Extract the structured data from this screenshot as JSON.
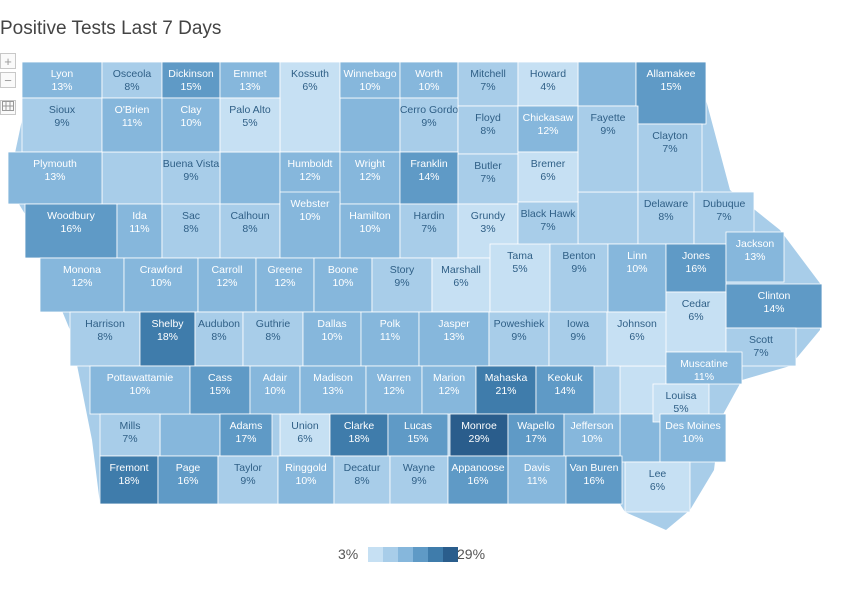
{
  "title": "Positive Tests Last 7 Days",
  "controls": {
    "zoom_in": "+",
    "zoom_out": "−",
    "reset_icon": "table-icon"
  },
  "legend": {
    "min_label": "3%",
    "max_label": "29%",
    "colors": [
      "#c6e0f3",
      "#a8cde9",
      "#86b7dc",
      "#5f9ac6",
      "#3f7cab",
      "#2a5d8c"
    ]
  },
  "counties": [
    {
      "name": "Lyon",
      "value": "13%"
    },
    {
      "name": "Osceola",
      "value": "8%"
    },
    {
      "name": "Dickinson",
      "value": "15%"
    },
    {
      "name": "Emmet",
      "value": "13%"
    },
    {
      "name": "Kossuth",
      "value": "6%"
    },
    {
      "name": "Winnebago",
      "value": "10%"
    },
    {
      "name": "Worth",
      "value": "10%"
    },
    {
      "name": "Mitchell",
      "value": "7%"
    },
    {
      "name": "Howard",
      "value": "4%"
    },
    {
      "name": "Allamakee",
      "value": "15%"
    },
    {
      "name": "Sioux",
      "value": "9%"
    },
    {
      "name": "O'Brien",
      "value": "11%"
    },
    {
      "name": "Clay",
      "value": "10%"
    },
    {
      "name": "Palo Alto",
      "value": "5%"
    },
    {
      "name": "Cerro Gordo",
      "value": "9%"
    },
    {
      "name": "Floyd",
      "value": "8%"
    },
    {
      "name": "Chickasaw",
      "value": "12%"
    },
    {
      "name": "Fayette",
      "value": "9%"
    },
    {
      "name": "Clayton",
      "value": "7%"
    },
    {
      "name": "Plymouth",
      "value": "13%"
    },
    {
      "name": "Buena Vista",
      "value": "9%"
    },
    {
      "name": "Humboldt",
      "value": "12%"
    },
    {
      "name": "Wright",
      "value": "12%"
    },
    {
      "name": "Franklin",
      "value": "14%"
    },
    {
      "name": "Butler",
      "value": "7%"
    },
    {
      "name": "Bremer",
      "value": "6%"
    },
    {
      "name": "Woodbury",
      "value": "16%"
    },
    {
      "name": "Ida",
      "value": "11%"
    },
    {
      "name": "Sac",
      "value": "8%"
    },
    {
      "name": "Calhoun",
      "value": "8%"
    },
    {
      "name": "Webster",
      "value": "10%"
    },
    {
      "name": "Hamilton",
      "value": "10%"
    },
    {
      "name": "Hardin",
      "value": "7%"
    },
    {
      "name": "Grundy",
      "value": "3%"
    },
    {
      "name": "Black Hawk",
      "value": "7%"
    },
    {
      "name": "Delaware",
      "value": "8%"
    },
    {
      "name": "Dubuque",
      "value": "7%"
    },
    {
      "name": "Monona",
      "value": "12%"
    },
    {
      "name": "Crawford",
      "value": "10%"
    },
    {
      "name": "Carroll",
      "value": "12%"
    },
    {
      "name": "Greene",
      "value": "12%"
    },
    {
      "name": "Boone",
      "value": "10%"
    },
    {
      "name": "Story",
      "value": "9%"
    },
    {
      "name": "Marshall",
      "value": "6%"
    },
    {
      "name": "Tama",
      "value": "5%"
    },
    {
      "name": "Benton",
      "value": "9%"
    },
    {
      "name": "Linn",
      "value": "10%"
    },
    {
      "name": "Jones",
      "value": "16%"
    },
    {
      "name": "Jackson",
      "value": "13%"
    },
    {
      "name": "Clinton",
      "value": "14%"
    },
    {
      "name": "Harrison",
      "value": "8%"
    },
    {
      "name": "Shelby",
      "value": "18%"
    },
    {
      "name": "Audubon",
      "value": "8%"
    },
    {
      "name": "Guthrie",
      "value": "8%"
    },
    {
      "name": "Dallas",
      "value": "10%"
    },
    {
      "name": "Polk",
      "value": "11%"
    },
    {
      "name": "Jasper",
      "value": "13%"
    },
    {
      "name": "Poweshiek",
      "value": "9%"
    },
    {
      "name": "Iowa",
      "value": "9%"
    },
    {
      "name": "Johnson",
      "value": "6%"
    },
    {
      "name": "Cedar",
      "value": "6%"
    },
    {
      "name": "Scott",
      "value": "7%"
    },
    {
      "name": "Pottawattamie",
      "value": "10%"
    },
    {
      "name": "Cass",
      "value": "15%"
    },
    {
      "name": "Adair",
      "value": "10%"
    },
    {
      "name": "Madison",
      "value": "13%"
    },
    {
      "name": "Warren",
      "value": "12%"
    },
    {
      "name": "Marion",
      "value": "12%"
    },
    {
      "name": "Mahaska",
      "value": "21%"
    },
    {
      "name": "Keokuk",
      "value": "14%"
    },
    {
      "name": "Muscatine",
      "value": "11%"
    },
    {
      "name": "Louisa",
      "value": "5%"
    },
    {
      "name": "Mills",
      "value": "7%"
    },
    {
      "name": "Adams",
      "value": "17%"
    },
    {
      "name": "Union",
      "value": "6%"
    },
    {
      "name": "Clarke",
      "value": "18%"
    },
    {
      "name": "Lucas",
      "value": "15%"
    },
    {
      "name": "Monroe",
      "value": "29%"
    },
    {
      "name": "Wapello",
      "value": "17%"
    },
    {
      "name": "Jefferson",
      "value": "10%"
    },
    {
      "name": "Des Moines",
      "value": "10%"
    },
    {
      "name": "Fremont",
      "value": "18%"
    },
    {
      "name": "Page",
      "value": "16%"
    },
    {
      "name": "Taylor",
      "value": "9%"
    },
    {
      "name": "Ringgold",
      "value": "10%"
    },
    {
      "name": "Decatur",
      "value": "8%"
    },
    {
      "name": "Wayne",
      "value": "9%"
    },
    {
      "name": "Appanoose",
      "value": "16%"
    },
    {
      "name": "Davis",
      "value": "11%"
    },
    {
      "name": "Van Buren",
      "value": "16%"
    },
    {
      "name": "Lee",
      "value": "6%"
    }
  ],
  "unlabeled_counties": [
    {
      "value": "10%"
    },
    {
      "value": "9%"
    },
    {
      "value": "10%"
    },
    {
      "value": "11%"
    },
    {
      "value": "7%"
    },
    {
      "value": "9%"
    },
    {
      "value": "6%"
    },
    {
      "value": "13%"
    },
    {
      "value": "11%"
    },
    {
      "value": "15%"
    }
  ]
}
